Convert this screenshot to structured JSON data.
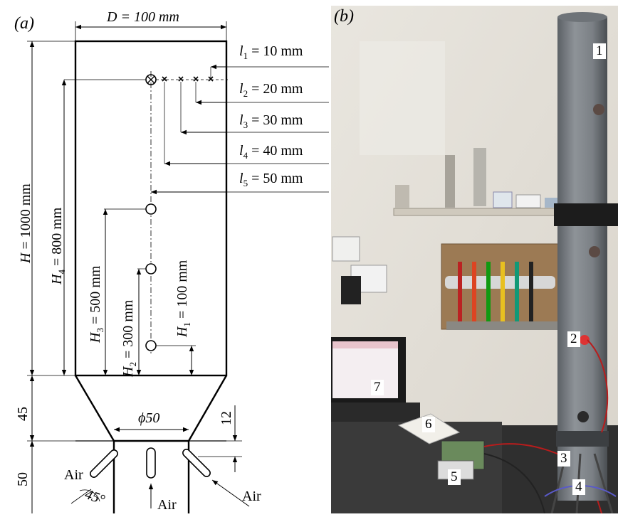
{
  "panel_a": {
    "label": "(a)",
    "dims": {
      "D": "D = 100 mm",
      "l1": "l1 = 10 mm",
      "l2": "l2 = 20 mm",
      "l3": "l3 = 30 mm",
      "l4": "l4 = 40 mm",
      "l5": "l5 = 50 mm",
      "H": "H = 1000 mm",
      "H4": "H4 = 800 mm",
      "H3": "H3 = 500 mm",
      "H2": "H2 = 300 mm",
      "H1": "H1 = 100 mm",
      "cone_h": "45",
      "base_h": "50",
      "phi": "ϕ50",
      "gap": "12",
      "angle": "45°"
    },
    "air_left": "Air",
    "air_center": "Air",
    "air_right": "Air"
  },
  "panel_b": {
    "label": "(b)",
    "markers": [
      "1",
      "2",
      "3",
      "4",
      "5",
      "6",
      "7"
    ]
  }
}
